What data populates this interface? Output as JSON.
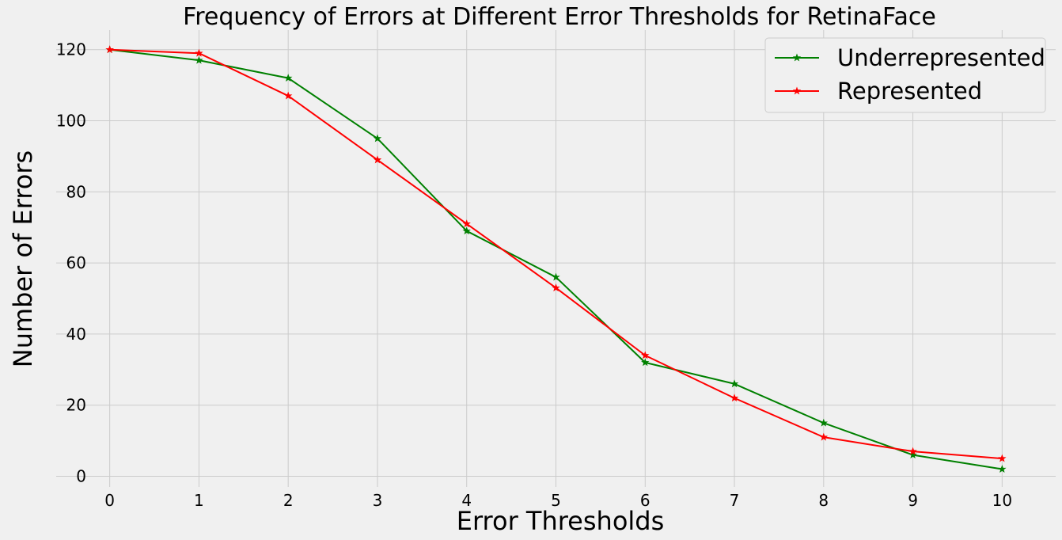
{
  "chart_data": {
    "type": "line",
    "title": "Frequency of Errors at Different Error Thresholds for RetinaFace",
    "xlabel": "Error Thresholds",
    "ylabel": "Number of Errors",
    "x": [
      0,
      1,
      2,
      3,
      4,
      5,
      6,
      7,
      8,
      9,
      10
    ],
    "xlim": [
      -0.6,
      10.6
    ],
    "ylim": [
      -3,
      125.5
    ],
    "xticks": [
      0,
      1,
      2,
      3,
      4,
      5,
      6,
      7,
      8,
      9,
      10
    ],
    "yticks": [
      0,
      20,
      40,
      60,
      80,
      100,
      120
    ],
    "grid": true,
    "legend_position": "top-right",
    "marker": "star",
    "series": [
      {
        "name": "Underrepresented",
        "color": "#008000",
        "values": [
          120,
          117,
          112,
          95,
          69,
          56,
          32,
          26,
          15,
          6,
          2
        ]
      },
      {
        "name": "Represented",
        "color": "#ff0000",
        "values": [
          120,
          119,
          107,
          89,
          71,
          53,
          34,
          22,
          11,
          7,
          5
        ]
      }
    ]
  }
}
